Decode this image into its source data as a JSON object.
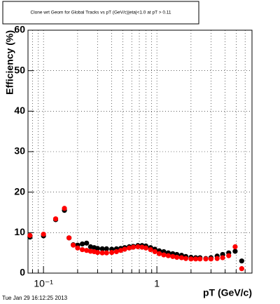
{
  "chart_data": {
    "type": "scatter",
    "title": "Clone wrt Geom for Global Tracks vs pT (GeV/c)|eta|<1.0 at pT > 0.11",
    "x_label": "pT (GeV/c)",
    "y_label": "Efficiency (%)",
    "timestamp": "Tue Jan 29 16:12:25 2013",
    "x": [
      0.076,
      0.1,
      0.128,
      0.153,
      0.168,
      0.183,
      0.2,
      0.22,
      0.24,
      0.26,
      0.28,
      0.3,
      0.33,
      0.36,
      0.4,
      0.44,
      0.48,
      0.52,
      0.57,
      0.62,
      0.68,
      0.74,
      0.8,
      0.88,
      0.96,
      1.05,
      1.15,
      1.26,
      1.38,
      1.5,
      1.65,
      1.8,
      2.0,
      2.2,
      2.4,
      2.7,
      3.0,
      3.4,
      3.8,
      4.3,
      4.9,
      5.6
    ],
    "series": [
      {
        "color": "#000000",
        "values": [
          8.9,
          9.2,
          13.2,
          15.5,
          8.7,
          7.0,
          6.9,
          7.2,
          7.4,
          6.5,
          6.3,
          6.1,
          6.0,
          6.0,
          5.9,
          6.0,
          6.1,
          6.3,
          6.5,
          6.6,
          6.8,
          6.8,
          6.7,
          6.3,
          5.9,
          5.5,
          5.3,
          5.0,
          4.8,
          4.6,
          4.4,
          4.1,
          3.9,
          3.8,
          3.8,
          3.6,
          3.8,
          4.2,
          4.6,
          5.0,
          5.4,
          3.0
        ]
      },
      {
        "color": "#ff0000",
        "values": [
          9.3,
          9.6,
          13.4,
          16.0,
          8.7,
          6.9,
          6.2,
          5.8,
          5.6,
          5.4,
          5.3,
          5.1,
          5.0,
          5.0,
          5.1,
          5.3,
          5.6,
          5.9,
          6.2,
          6.4,
          6.5,
          6.4,
          6.2,
          5.8,
          5.3,
          4.8,
          4.5,
          4.3,
          4.1,
          3.9,
          3.8,
          3.6,
          3.5,
          3.5,
          3.5,
          3.5,
          3.5,
          3.6,
          3.8,
          4.3,
          6.5,
          1.1
        ]
      }
    ],
    "xlim": [
      0.073,
      6.9
    ],
    "x_log": true,
    "xticks": [
      {
        "value": 0.1,
        "label": "10⁻¹"
      },
      1
    ],
    "xminor": [
      0.08,
      0.09,
      0.2,
      0.3,
      0.4,
      0.5,
      0.6,
      0.7,
      0.8,
      0.9,
      2,
      3,
      4,
      5,
      6
    ],
    "ylim": [
      0,
      60
    ],
    "yticks": [
      0,
      10,
      20,
      30,
      40,
      50,
      60
    ],
    "grid": true
  }
}
